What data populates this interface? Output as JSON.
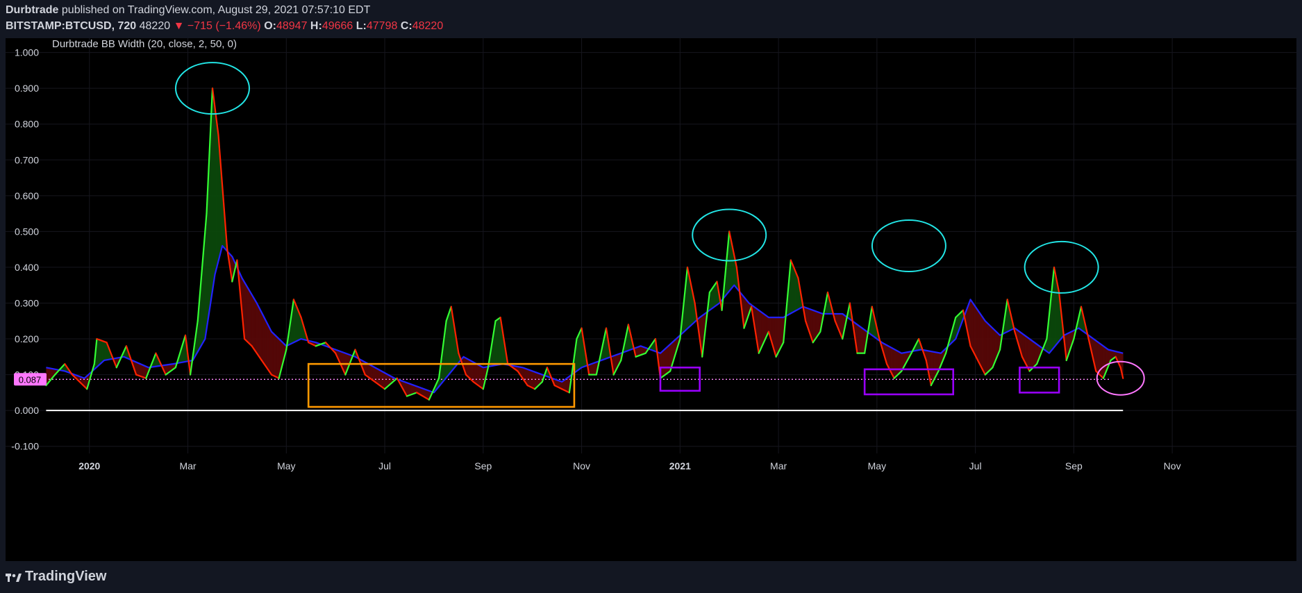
{
  "header": {
    "author": "Durbtrade",
    "published_text": "published on TradingView.com, August 29, 2021 07:57:10 EDT",
    "symbol": "BITSTAMP:BTCUSD, 720",
    "last": "48220",
    "change_arrow": "▼",
    "change": "−715 (−1.46%)",
    "o_label": "O:",
    "o_value": "48947",
    "h_label": "H:",
    "h_value": "49666",
    "l_label": "L:",
    "l_value": "47798",
    "c_label": "C:",
    "c_value": "48220"
  },
  "footer": {
    "brand": "TradingView",
    "brand_icon": "tradingview-logo-icon"
  },
  "colors": {
    "background": "#131722",
    "panel": "#000000",
    "rising": "#33ff33",
    "falling": "#ff2200",
    "ma": "#2222ff",
    "fill_green": "#0b4a0b",
    "fill_red": "#5a0808",
    "circle": "#22e6e6",
    "orange_box": "#ff9900",
    "purple_box": "#9900ff",
    "level_badge": "#ff77ff",
    "zero_line": "#ffffff",
    "grid": "#16161e"
  },
  "chart_data": {
    "type": "line",
    "title": "Durbtrade BB Width (20, close, 2, 50, 0)",
    "xlabel": "",
    "ylabel": "",
    "ylim": [
      -0.12,
      1.04
    ],
    "y_ticks": [
      "1.000",
      "0.900",
      "0.800",
      "0.700",
      "0.600",
      "0.500",
      "0.400",
      "0.300",
      "0.200",
      "0.100",
      "0.000",
      "-0.100"
    ],
    "x_ticks": [
      {
        "label": "2020",
        "m": 0.0,
        "bold": true
      },
      {
        "label": "Mar",
        "m": 2.0
      },
      {
        "label": "May",
        "m": 4.0
      },
      {
        "label": "Jul",
        "m": 6.0
      },
      {
        "label": "Sep",
        "m": 8.0
      },
      {
        "label": "Nov",
        "m": 10.0
      },
      {
        "label": "2021",
        "m": 12.0,
        "bold": true
      },
      {
        "label": "Mar",
        "m": 14.0
      },
      {
        "label": "May",
        "m": 16.0
      },
      {
        "label": "Jul",
        "m": 18.0
      },
      {
        "label": "Sep",
        "m": 20.0
      },
      {
        "label": "Nov",
        "m": 22.0
      }
    ],
    "xlim_months": [
      -0.9,
      23.55
    ],
    "series": [
      {
        "role": "bb_width",
        "points": [
          [
            -0.88,
            0.07
          ],
          [
            -0.7,
            0.1
          ],
          [
            -0.5,
            0.13
          ],
          [
            -0.35,
            0.1
          ],
          [
            -0.2,
            0.08
          ],
          [
            -0.05,
            0.06
          ],
          [
            0.1,
            0.13
          ],
          [
            0.15,
            0.2
          ],
          [
            0.35,
            0.19
          ],
          [
            0.55,
            0.12
          ],
          [
            0.75,
            0.18
          ],
          [
            0.95,
            0.1
          ],
          [
            1.15,
            0.09
          ],
          [
            1.35,
            0.16
          ],
          [
            1.55,
            0.1
          ],
          [
            1.75,
            0.12
          ],
          [
            1.95,
            0.21
          ],
          [
            2.05,
            0.1
          ],
          [
            2.2,
            0.25
          ],
          [
            2.38,
            0.55
          ],
          [
            2.5,
            0.9
          ],
          [
            2.62,
            0.77
          ],
          [
            2.8,
            0.45
          ],
          [
            2.9,
            0.36
          ],
          [
            3.0,
            0.42
          ],
          [
            3.15,
            0.2
          ],
          [
            3.3,
            0.18
          ],
          [
            3.5,
            0.14
          ],
          [
            3.7,
            0.1
          ],
          [
            3.85,
            0.09
          ],
          [
            4.0,
            0.17
          ],
          [
            4.15,
            0.31
          ],
          [
            4.3,
            0.26
          ],
          [
            4.45,
            0.19
          ],
          [
            4.6,
            0.18
          ],
          [
            4.8,
            0.19
          ],
          [
            5.0,
            0.16
          ],
          [
            5.2,
            0.1
          ],
          [
            5.4,
            0.17
          ],
          [
            5.6,
            0.1
          ],
          [
            5.8,
            0.08
          ],
          [
            6.0,
            0.06
          ],
          [
            6.25,
            0.09
          ],
          [
            6.45,
            0.04
          ],
          [
            6.65,
            0.05
          ],
          [
            6.9,
            0.03
          ],
          [
            7.1,
            0.09
          ],
          [
            7.25,
            0.25
          ],
          [
            7.35,
            0.29
          ],
          [
            7.5,
            0.16
          ],
          [
            7.65,
            0.1
          ],
          [
            7.8,
            0.08
          ],
          [
            8.0,
            0.06
          ],
          [
            8.1,
            0.12
          ],
          [
            8.25,
            0.25
          ],
          [
            8.35,
            0.26
          ],
          [
            8.5,
            0.13
          ],
          [
            8.7,
            0.11
          ],
          [
            8.9,
            0.07
          ],
          [
            9.05,
            0.06
          ],
          [
            9.2,
            0.08
          ],
          [
            9.3,
            0.12
          ],
          [
            9.45,
            0.07
          ],
          [
            9.6,
            0.06
          ],
          [
            9.75,
            0.05
          ],
          [
            9.9,
            0.2
          ],
          [
            10.0,
            0.23
          ],
          [
            10.15,
            0.1
          ],
          [
            10.3,
            0.1
          ],
          [
            10.5,
            0.23
          ],
          [
            10.65,
            0.1
          ],
          [
            10.8,
            0.14
          ],
          [
            10.95,
            0.24
          ],
          [
            11.1,
            0.15
          ],
          [
            11.3,
            0.16
          ],
          [
            11.5,
            0.2
          ],
          [
            11.6,
            0.09
          ],
          [
            11.8,
            0.11
          ],
          [
            12.0,
            0.2
          ],
          [
            12.15,
            0.4
          ],
          [
            12.3,
            0.3
          ],
          [
            12.45,
            0.15
          ],
          [
            12.6,
            0.33
          ],
          [
            12.75,
            0.36
          ],
          [
            12.85,
            0.28
          ],
          [
            13.0,
            0.5
          ],
          [
            13.15,
            0.4
          ],
          [
            13.3,
            0.23
          ],
          [
            13.45,
            0.29
          ],
          [
            13.6,
            0.16
          ],
          [
            13.8,
            0.22
          ],
          [
            13.95,
            0.15
          ],
          [
            14.1,
            0.19
          ],
          [
            14.25,
            0.42
          ],
          [
            14.4,
            0.37
          ],
          [
            14.55,
            0.25
          ],
          [
            14.7,
            0.19
          ],
          [
            14.85,
            0.22
          ],
          [
            15.0,
            0.33
          ],
          [
            15.15,
            0.25
          ],
          [
            15.3,
            0.2
          ],
          [
            15.45,
            0.3
          ],
          [
            15.6,
            0.16
          ],
          [
            15.75,
            0.16
          ],
          [
            15.9,
            0.29
          ],
          [
            16.05,
            0.2
          ],
          [
            16.2,
            0.13
          ],
          [
            16.35,
            0.09
          ],
          [
            16.5,
            0.11
          ],
          [
            16.7,
            0.16
          ],
          [
            16.85,
            0.2
          ],
          [
            17.0,
            0.14
          ],
          [
            17.1,
            0.07
          ],
          [
            17.25,
            0.11
          ],
          [
            17.4,
            0.16
          ],
          [
            17.6,
            0.26
          ],
          [
            17.75,
            0.28
          ],
          [
            17.9,
            0.18
          ],
          [
            18.05,
            0.14
          ],
          [
            18.2,
            0.1
          ],
          [
            18.35,
            0.12
          ],
          [
            18.5,
            0.17
          ],
          [
            18.65,
            0.31
          ],
          [
            18.8,
            0.22
          ],
          [
            18.95,
            0.15
          ],
          [
            19.1,
            0.11
          ],
          [
            19.25,
            0.13
          ],
          [
            19.45,
            0.2
          ],
          [
            19.6,
            0.4
          ],
          [
            19.7,
            0.33
          ],
          [
            19.85,
            0.14
          ],
          [
            20.0,
            0.2
          ],
          [
            20.15,
            0.29
          ],
          [
            20.3,
            0.2
          ],
          [
            20.45,
            0.11
          ],
          [
            20.6,
            0.09
          ],
          [
            20.75,
            0.14
          ],
          [
            20.85,
            0.15
          ],
          [
            20.95,
            0.12
          ],
          [
            21.0,
            0.09
          ]
        ]
      },
      {
        "role": "moving_average",
        "points": [
          [
            -0.88,
            0.12
          ],
          [
            -0.5,
            0.11
          ],
          [
            -0.1,
            0.09
          ],
          [
            0.3,
            0.14
          ],
          [
            0.7,
            0.15
          ],
          [
            1.2,
            0.12
          ],
          [
            1.7,
            0.13
          ],
          [
            2.1,
            0.14
          ],
          [
            2.35,
            0.2
          ],
          [
            2.55,
            0.38
          ],
          [
            2.7,
            0.46
          ],
          [
            2.9,
            0.43
          ],
          [
            3.1,
            0.37
          ],
          [
            3.4,
            0.3
          ],
          [
            3.7,
            0.22
          ],
          [
            4.0,
            0.18
          ],
          [
            4.3,
            0.2
          ],
          [
            4.6,
            0.19
          ],
          [
            5.0,
            0.17
          ],
          [
            5.4,
            0.15
          ],
          [
            5.8,
            0.12
          ],
          [
            6.2,
            0.09
          ],
          [
            6.6,
            0.07
          ],
          [
            7.0,
            0.05
          ],
          [
            7.3,
            0.1
          ],
          [
            7.6,
            0.15
          ],
          [
            8.0,
            0.12
          ],
          [
            8.4,
            0.13
          ],
          [
            8.8,
            0.12
          ],
          [
            9.2,
            0.1
          ],
          [
            9.6,
            0.08
          ],
          [
            10.0,
            0.12
          ],
          [
            10.4,
            0.14
          ],
          [
            10.8,
            0.16
          ],
          [
            11.2,
            0.18
          ],
          [
            11.6,
            0.16
          ],
          [
            12.0,
            0.21
          ],
          [
            12.4,
            0.26
          ],
          [
            12.8,
            0.3
          ],
          [
            13.1,
            0.35
          ],
          [
            13.4,
            0.3
          ],
          [
            13.8,
            0.26
          ],
          [
            14.1,
            0.26
          ],
          [
            14.5,
            0.29
          ],
          [
            14.9,
            0.27
          ],
          [
            15.3,
            0.27
          ],
          [
            15.7,
            0.23
          ],
          [
            16.1,
            0.19
          ],
          [
            16.5,
            0.16
          ],
          [
            16.9,
            0.17
          ],
          [
            17.3,
            0.16
          ],
          [
            17.6,
            0.2
          ],
          [
            17.9,
            0.31
          ],
          [
            18.2,
            0.25
          ],
          [
            18.5,
            0.21
          ],
          [
            18.8,
            0.23
          ],
          [
            19.2,
            0.19
          ],
          [
            19.5,
            0.16
          ],
          [
            19.8,
            0.21
          ],
          [
            20.1,
            0.23
          ],
          [
            20.4,
            0.2
          ],
          [
            20.7,
            0.17
          ],
          [
            21.0,
            0.16
          ]
        ]
      }
    ],
    "level_line": {
      "value": 0.087,
      "label": "0.087"
    },
    "zero_line": {
      "value": 0.0,
      "from": -0.88,
      "to": 21.0
    },
    "annotations": [
      {
        "shape": "circle",
        "color": "circle",
        "cx": 2.5,
        "cy": 0.9
      },
      {
        "shape": "circle",
        "color": "circle",
        "cx": 13.0,
        "cy": 0.49
      },
      {
        "shape": "circle",
        "color": "circle",
        "cx": 16.65,
        "cy": 0.46
      },
      {
        "shape": "circle",
        "color": "circle",
        "cx": 19.75,
        "cy": 0.4
      },
      {
        "shape": "circle",
        "color": "level_badge",
        "cx": 20.95,
        "cy": 0.09
      },
      {
        "shape": "rect",
        "color": "orange_box",
        "x0": 4.45,
        "x1": 9.85,
        "y0": 0.13,
        "y1": 0.01
      },
      {
        "shape": "rect",
        "color": "purple_box",
        "x0": 11.6,
        "x1": 12.4,
        "y0": 0.12,
        "y1": 0.055
      },
      {
        "shape": "rect",
        "color": "purple_box",
        "x0": 15.75,
        "x1": 17.55,
        "y0": 0.115,
        "y1": 0.045
      },
      {
        "shape": "rect",
        "color": "purple_box",
        "x0": 18.9,
        "x1": 19.7,
        "y0": 0.12,
        "y1": 0.05
      }
    ]
  }
}
